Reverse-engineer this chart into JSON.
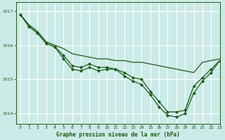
{
  "xlabel": "Graphe pression niveau de la mer (hPa)",
  "background_color": "#cceae7",
  "grid_color": "#ffffff",
  "line_color": "#1a5c1a",
  "xlim": [
    -0.5,
    23
  ],
  "ylim": [
    1013.7,
    1017.25
  ],
  "yticks": [
    1014,
    1015,
    1016,
    1017
  ],
  "xticks": [
    0,
    1,
    2,
    3,
    4,
    5,
    6,
    7,
    8,
    9,
    10,
    11,
    12,
    13,
    14,
    15,
    16,
    17,
    18,
    19,
    20,
    21,
    22,
    23
  ],
  "series": [
    {
      "x": [
        0,
        1,
        2,
        3,
        4,
        5,
        6,
        7,
        8,
        9,
        10,
        11,
        12,
        13,
        14,
        15,
        16,
        17,
        18,
        19,
        20,
        21,
        22,
        23
      ],
      "y": [
        1016.9,
        1016.6,
        1016.4,
        1016.1,
        1016.0,
        1015.9,
        1015.75,
        1015.7,
        1015.65,
        1015.6,
        1015.6,
        1015.55,
        1015.55,
        1015.5,
        1015.5,
        1015.45,
        1015.4,
        1015.35,
        1015.3,
        1015.25,
        1015.2,
        1015.5,
        1015.55,
        1015.6
      ],
      "marker": false
    },
    {
      "x": [
        0,
        1,
        2,
        3,
        4,
        5,
        6,
        7,
        8,
        9,
        10,
        11,
        12,
        13,
        14,
        15,
        16,
        17,
        18,
        19,
        20,
        21,
        22,
        23
      ],
      "y": [
        1016.9,
        1016.55,
        1016.35,
        1016.05,
        1015.95,
        1015.7,
        1015.4,
        1015.35,
        1015.45,
        1015.35,
        1015.35,
        1015.3,
        1015.2,
        1015.05,
        1015.0,
        1014.65,
        1014.35,
        1014.05,
        1014.05,
        1014.1,
        1014.8,
        1015.05,
        1015.3,
        1015.55
      ],
      "marker": true
    },
    {
      "x": [
        0,
        1,
        2,
        3,
        4,
        5,
        6,
        7,
        8,
        9,
        10,
        11,
        12,
        13,
        14,
        15,
        16,
        17,
        18,
        19,
        20,
        21,
        22,
        23
      ],
      "y": [
        1016.9,
        1016.55,
        1016.35,
        1016.05,
        1015.95,
        1015.6,
        1015.3,
        1015.25,
        1015.35,
        1015.25,
        1015.3,
        1015.3,
        1015.1,
        1014.95,
        1014.85,
        1014.55,
        1014.2,
        1013.95,
        1013.9,
        1014.0,
        1014.6,
        1014.95,
        1015.2,
        1015.55
      ],
      "marker": true
    }
  ]
}
